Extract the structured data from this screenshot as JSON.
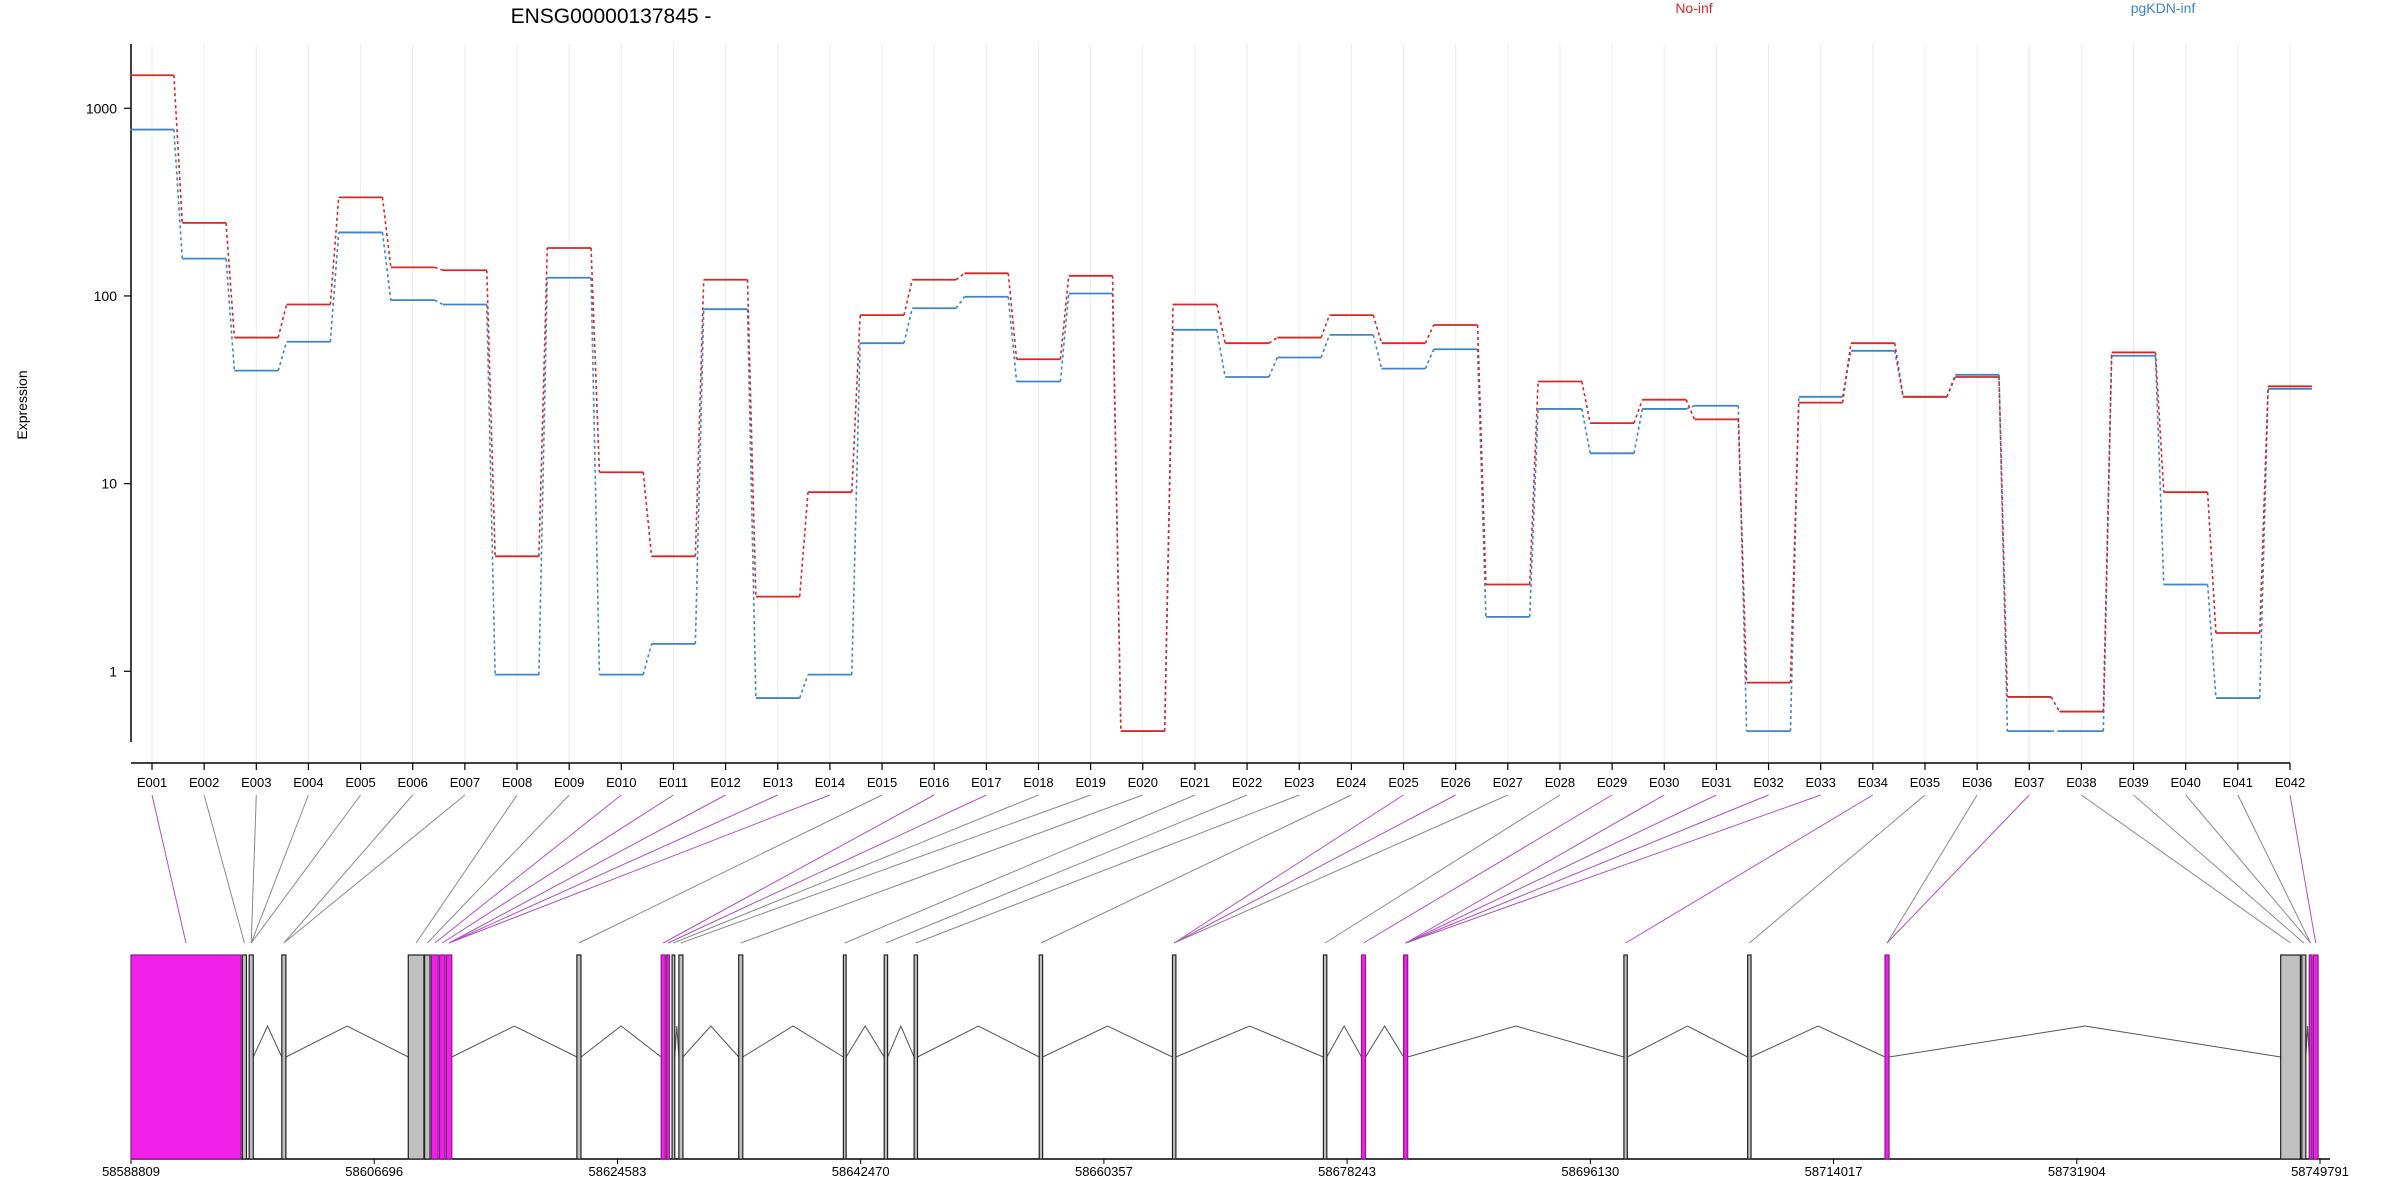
{
  "chart_data": {
    "type": "line",
    "title": "ENSG00000137845 -",
    "ylabel": "Expression",
    "yscale": "log",
    "ylim": [
      0.42,
      2200
    ],
    "y_ticks": [
      1,
      10,
      100,
      1000
    ],
    "y_tick_labels": [
      "1",
      "10",
      "100",
      "1000"
    ],
    "grid": "vertical",
    "legend_position": "top",
    "categories": [
      "E001",
      "E002",
      "E003",
      "E004",
      "E005",
      "E006",
      "E007",
      "E008",
      "E009",
      "E010",
      "E011",
      "E012",
      "E013",
      "E014",
      "E015",
      "E016",
      "E017",
      "E018",
      "E019",
      "E020",
      "E021",
      "E022",
      "E023",
      "E024",
      "E025",
      "E026",
      "E027",
      "E028",
      "E029",
      "E030",
      "E031",
      "E032",
      "E033",
      "E034",
      "E035",
      "E036",
      "E037",
      "E038",
      "E039",
      "E040",
      "E041",
      "E042"
    ],
    "series": [
      {
        "name": "No-inf",
        "color": "#d62728",
        "values": [
          1500,
          245,
          60,
          90,
          335,
          142,
          137,
          4.1,
          180,
          11.5,
          4.1,
          122,
          2.5,
          9,
          79,
          122,
          132,
          46,
          128,
          0.48,
          90,
          56,
          60,
          79,
          56,
          70,
          2.9,
          35,
          21,
          28,
          22,
          0.87,
          27,
          56,
          29,
          37,
          0.73,
          0.61,
          50,
          9,
          1.6,
          33
        ]
      },
      {
        "name": "pgKDN-inf",
        "color": "#3d85c6",
        "values": [
          770,
          158,
          40,
          57,
          218,
          95,
          90,
          0.96,
          125,
          0.96,
          1.4,
          85,
          0.72,
          0.96,
          56,
          86,
          99,
          35,
          103,
          0.48,
          66,
          37,
          47,
          62,
          41,
          52,
          1.95,
          25,
          14.5,
          25,
          26,
          0.48,
          29,
          51,
          29,
          38,
          0.48,
          0.48,
          48,
          2.9,
          0.72,
          32
        ]
      }
    ],
    "gene_model": {
      "x_ticks": [
        58588809,
        58606696,
        58624583,
        58642470,
        58660357,
        58678243,
        58696130,
        58714017,
        58731904,
        58749791
      ],
      "x_tick_labels": [
        "58588809",
        "58606696",
        "58624583",
        "58642470",
        "58660357",
        "58678243",
        "58696130",
        "58714017",
        "58731904",
        "58749791"
      ],
      "xlim": [
        58588809,
        58749791
      ],
      "highlight_color": "#f020e8",
      "exon_color": "#c0c0c0",
      "exons": [
        {
          "start": 58588809,
          "end": 58596900,
          "highlight": true
        },
        {
          "start": 58597000,
          "end": 58597300,
          "highlight": false
        },
        {
          "start": 58597500,
          "end": 58597800,
          "highlight": false
        },
        {
          "start": 58599900,
          "end": 58600200,
          "highlight": false
        },
        {
          "start": 58609200,
          "end": 58610350,
          "highlight": false
        },
        {
          "start": 58610400,
          "end": 58610800,
          "highlight": false
        },
        {
          "start": 58610900,
          "end": 58611400,
          "highlight": true
        },
        {
          "start": 58611500,
          "end": 58611900,
          "highlight": true
        },
        {
          "start": 58612000,
          "end": 58612400,
          "highlight": true
        },
        {
          "start": 58621600,
          "end": 58621900,
          "highlight": false
        },
        {
          "start": 58627800,
          "end": 58628100,
          "highlight": true
        },
        {
          "start": 58628200,
          "end": 58628400,
          "highlight": true
        },
        {
          "start": 58628600,
          "end": 58628800,
          "highlight": false
        },
        {
          "start": 58629100,
          "end": 58629400,
          "highlight": false
        },
        {
          "start": 58633500,
          "end": 58633800,
          "highlight": false
        },
        {
          "start": 58641200,
          "end": 58641400,
          "highlight": false
        },
        {
          "start": 58644200,
          "end": 58644450,
          "highlight": false
        },
        {
          "start": 58646400,
          "end": 58646650,
          "highlight": false
        },
        {
          "start": 58655600,
          "end": 58655850,
          "highlight": false
        },
        {
          "start": 58665400,
          "end": 58665650,
          "highlight": false
        },
        {
          "start": 58676500,
          "end": 58676750,
          "highlight": false
        },
        {
          "start": 58679300,
          "end": 58679600,
          "highlight": true
        },
        {
          "start": 58682400,
          "end": 58682700,
          "highlight": true
        },
        {
          "start": 58698600,
          "end": 58698850,
          "highlight": false
        },
        {
          "start": 58707700,
          "end": 58707950,
          "highlight": false
        },
        {
          "start": 58717800,
          "end": 58718100,
          "highlight": true
        },
        {
          "start": 58746900,
          "end": 58748350,
          "highlight": false
        },
        {
          "start": 58748450,
          "end": 58748750,
          "highlight": false
        },
        {
          "start": 58749000,
          "end": 58749200,
          "highlight": true
        },
        {
          "start": 58749300,
          "end": 58749650,
          "highlight": true
        }
      ],
      "exon_bins": [
        {
          "bin": "E001",
          "exon": 0,
          "highlight": true
        },
        {
          "bin": "E002",
          "exon": 1,
          "highlight": false
        },
        {
          "bin": "E003",
          "exon": 2,
          "highlight": false
        },
        {
          "bin": "E004",
          "exon": 2,
          "highlight": false
        },
        {
          "bin": "E005",
          "exon": 2,
          "highlight": false
        },
        {
          "bin": "E006",
          "exon": 3,
          "highlight": false
        },
        {
          "bin": "E007",
          "exon": 3,
          "highlight": false
        },
        {
          "bin": "E008",
          "exon": 4,
          "highlight": false
        },
        {
          "bin": "E009",
          "exon": 5,
          "highlight": false
        },
        {
          "bin": "E010",
          "exon": 6,
          "highlight": true
        },
        {
          "bin": "E011",
          "exon": 7,
          "highlight": true
        },
        {
          "bin": "E012",
          "exon": 8,
          "highlight": true
        },
        {
          "bin": "E013",
          "exon": 8,
          "highlight": true
        },
        {
          "bin": "E014",
          "exon": 8,
          "highlight": true
        },
        {
          "bin": "E015",
          "exon": 9,
          "highlight": false
        },
        {
          "bin": "E016",
          "exon": 10,
          "highlight": true
        },
        {
          "bin": "E017",
          "exon": 11,
          "highlight": true
        },
        {
          "bin": "E018",
          "exon": 12,
          "highlight": false
        },
        {
          "bin": "E019",
          "exon": 13,
          "highlight": false
        },
        {
          "bin": "E020",
          "exon": 14,
          "highlight": false
        },
        {
          "bin": "E021",
          "exon": 15,
          "highlight": false
        },
        {
          "bin": "E022",
          "exon": 16,
          "highlight": false
        },
        {
          "bin": "E023",
          "exon": 17,
          "highlight": false
        },
        {
          "bin": "E024",
          "exon": 18,
          "highlight": false
        },
        {
          "bin": "E025",
          "exon": 19,
          "highlight": true
        },
        {
          "bin": "E026",
          "exon": 19,
          "highlight": true
        },
        {
          "bin": "E027",
          "exon": 19,
          "highlight": false
        },
        {
          "bin": "E028",
          "exon": 20,
          "highlight": false
        },
        {
          "bin": "E029",
          "exon": 21,
          "highlight": true
        },
        {
          "bin": "E030",
          "exon": 22,
          "highlight": true
        },
        {
          "bin": "E031",
          "exon": 22,
          "highlight": true
        },
        {
          "bin": "E032",
          "exon": 22,
          "highlight": true
        },
        {
          "bin": "E033",
          "exon": 22,
          "highlight": true
        },
        {
          "bin": "E034",
          "exon": 23,
          "highlight": true
        },
        {
          "bin": "E035",
          "exon": 24,
          "highlight": false
        },
        {
          "bin": "E036",
          "exon": 25,
          "highlight": false
        },
        {
          "bin": "E037",
          "exon": 25,
          "highlight": true
        },
        {
          "bin": "E038",
          "exon": 26,
          "highlight": false
        },
        {
          "bin": "E039",
          "exon": 27,
          "highlight": false
        },
        {
          "bin": "E040",
          "exon": 28,
          "highlight": false
        },
        {
          "bin": "E041",
          "exon": 28,
          "highlight": false
        },
        {
          "bin": "E042",
          "exon": 29,
          "highlight": true
        }
      ]
    }
  }
}
